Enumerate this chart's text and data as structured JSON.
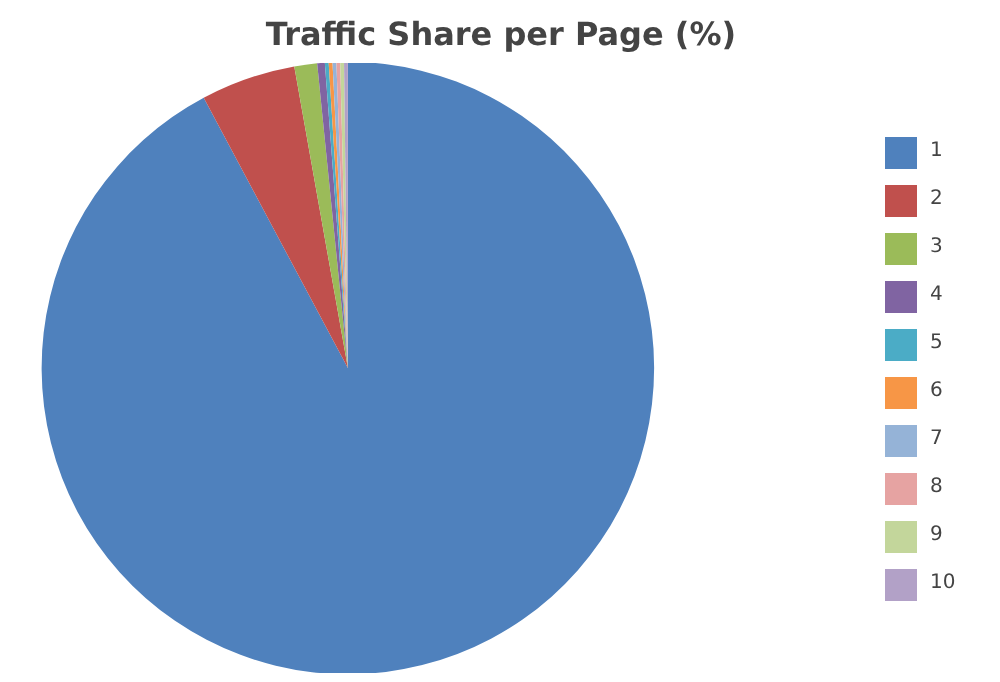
{
  "chart_data": {
    "type": "pie",
    "title": "Traffic Share per Page (%)",
    "categories": [
      "1",
      "2",
      "3",
      "4",
      "5",
      "6",
      "7",
      "8",
      "9",
      "10"
    ],
    "values": [
      92.2,
      5,
      1.2,
      0.4,
      0.2,
      0.2,
      0.2,
      0.2,
      0.2,
      0.2
    ],
    "colors": [
      "#4f81bd",
      "#c0504d",
      "#9bbb59",
      "#8064a2",
      "#4bacc6",
      "#f79646",
      "#95b3d7",
      "#e6a3a2",
      "#c3d69b",
      "#b2a1c7"
    ],
    "legend": "right"
  }
}
